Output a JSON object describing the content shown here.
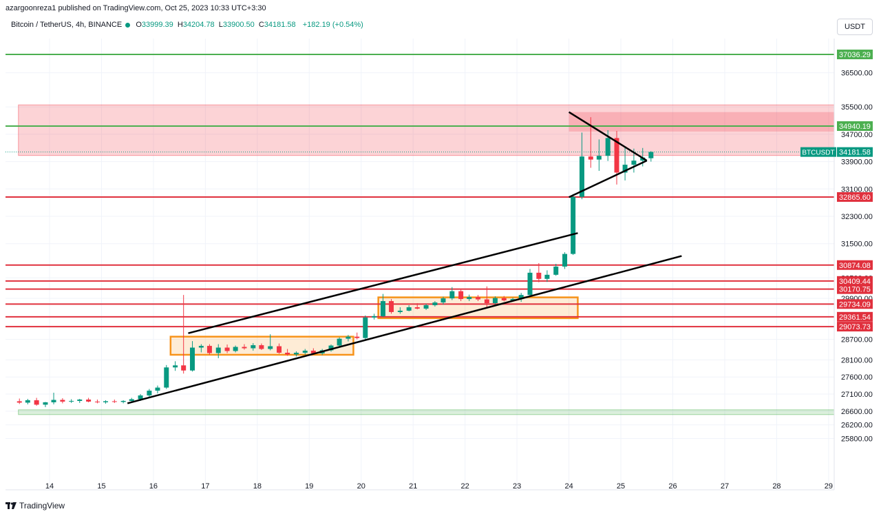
{
  "publisher": "azargoonreza1 published on TradingView.com, Oct 25, 2023 10:33 UTC+3:30",
  "legend": {
    "symbol": "Bitcoin / TetherUS, 4h, BINANCE",
    "open_label": "O",
    "open": "33999.39",
    "high_label": "H",
    "high": "34204.78",
    "low_label": "L",
    "low": "33900.50",
    "close_label": "C",
    "close": "34181.58",
    "change": "+182.19 (+0.54%)"
  },
  "currency": "USDT",
  "footer": {
    "brand": "TradingView"
  },
  "colors": {
    "up": "#089981",
    "down": "#f23645",
    "support": "#4caf50",
    "level": "#e0303d",
    "box": "#f7931a",
    "zone": "#f7a8a8"
  },
  "chart_data": {
    "type": "candlestick",
    "title": "Bitcoin / TetherUS, 4h, BINANCE",
    "ylim": [
      25600,
      37550
    ],
    "price_ticks": [
      "36500.00",
      "35500.00",
      "34700.00",
      "33900.00",
      "33100.00",
      "32300.00",
      "31500.00",
      "30500.00",
      "29900.00",
      "28700.00",
      "28100.00",
      "27600.00",
      "27100.00",
      "26600.00",
      "26200.00",
      "25800.00"
    ],
    "x_ticks": [
      "14",
      "15",
      "16",
      "17",
      "18",
      "19",
      "20",
      "21",
      "22",
      "23",
      "24",
      "25",
      "26",
      "27",
      "28",
      "29"
    ],
    "levels": [
      {
        "price": 37036.29,
        "label": "37036.29",
        "color": "#4caf50"
      },
      {
        "price": 34940.19,
        "label": "34940.19",
        "color": "#4caf50"
      },
      {
        "price": 32865.6,
        "label": "32865.60",
        "color": "#e0303d"
      },
      {
        "price": 30874.08,
        "label": "30874.08",
        "color": "#e0303d"
      },
      {
        "price": 30409.44,
        "label": "30409.44",
        "color": "#e0303d"
      },
      {
        "price": 30170.75,
        "label": "30170.75",
        "color": "#e0303d"
      },
      {
        "price": 29734.09,
        "label": "29734.09",
        "color": "#e0303d"
      },
      {
        "price": 29361.54,
        "label": "29361.54",
        "color": "#e0303d"
      },
      {
        "price": 29073.73,
        "label": "29073.73",
        "color": "#e0303d"
      }
    ],
    "last_price": {
      "label": "BTCUSDT",
      "value": "34181.58",
      "price": 34181.58
    },
    "zones": [
      {
        "from": 34080,
        "to": 35560,
        "x_from": 13.4,
        "x_to": 29.15,
        "kind": "resistance"
      },
      {
        "from": 26500,
        "to": 26640,
        "x_from": 13.4,
        "x_to": 29.15,
        "kind": "support"
      }
    ],
    "boxes": [
      {
        "x_from": 16.33,
        "x_to": 19.85,
        "top": 28780,
        "bottom": 28250
      },
      {
        "x_from": 20.33,
        "x_to": 24.17,
        "top": 29930,
        "bottom": 29320
      }
    ],
    "trendlines": [
      {
        "x1": 16.67,
        "y1": 28880,
        "x2": 24.17,
        "y2": 31810
      },
      {
        "x1": 15.5,
        "y1": 26830,
        "x2": 26.17,
        "y2": 31140
      },
      {
        "x1": 24.0,
        "y1": 35350,
        "x2": 25.5,
        "y2": 33930
      },
      {
        "x1": 24.0,
        "y1": 32860,
        "x2": 25.5,
        "y2": 33930
      }
    ],
    "candles": [
      {
        "t": 13.42,
        "o": 26890,
        "h": 26970,
        "l": 26810,
        "c": 26850
      },
      {
        "t": 13.58,
        "o": 26850,
        "h": 26960,
        "l": 26800,
        "c": 26920
      },
      {
        "t": 13.75,
        "o": 26920,
        "h": 26990,
        "l": 26760,
        "c": 26790
      },
      {
        "t": 13.92,
        "o": 26790,
        "h": 26870,
        "l": 26720,
        "c": 26860
      },
      {
        "t": 14.08,
        "o": 26860,
        "h": 27140,
        "l": 26800,
        "c": 26930
      },
      {
        "t": 14.25,
        "o": 26930,
        "h": 26980,
        "l": 26830,
        "c": 26880
      },
      {
        "t": 14.42,
        "o": 26880,
        "h": 26950,
        "l": 26840,
        "c": 26900
      },
      {
        "t": 14.58,
        "o": 26900,
        "h": 26960,
        "l": 26840,
        "c": 26940
      },
      {
        "t": 14.75,
        "o": 26940,
        "h": 26990,
        "l": 26860,
        "c": 26880
      },
      {
        "t": 14.92,
        "o": 26880,
        "h": 26940,
        "l": 26830,
        "c": 26860
      },
      {
        "t": 15.08,
        "o": 26860,
        "h": 26920,
        "l": 26820,
        "c": 26890
      },
      {
        "t": 15.25,
        "o": 26890,
        "h": 26940,
        "l": 26840,
        "c": 26870
      },
      {
        "t": 15.42,
        "o": 26870,
        "h": 26920,
        "l": 26830,
        "c": 26900
      },
      {
        "t": 15.58,
        "o": 26900,
        "h": 26990,
        "l": 26850,
        "c": 26950
      },
      {
        "t": 15.75,
        "o": 26950,
        "h": 27100,
        "l": 26900,
        "c": 27060
      },
      {
        "t": 15.92,
        "o": 27060,
        "h": 27250,
        "l": 27000,
        "c": 27200
      },
      {
        "t": 16.08,
        "o": 27200,
        "h": 27350,
        "l": 27120,
        "c": 27290
      },
      {
        "t": 16.25,
        "o": 27290,
        "h": 27950,
        "l": 27250,
        "c": 27880
      },
      {
        "t": 16.42,
        "o": 27880,
        "h": 28060,
        "l": 27780,
        "c": 27940
      },
      {
        "t": 16.58,
        "o": 27940,
        "h": 30000,
        "l": 27700,
        "c": 27790
      },
      {
        "t": 16.75,
        "o": 27790,
        "h": 28650,
        "l": 27760,
        "c": 28460
      },
      {
        "t": 16.92,
        "o": 28460,
        "h": 28560,
        "l": 28320,
        "c": 28510
      },
      {
        "t": 17.08,
        "o": 28510,
        "h": 28560,
        "l": 28250,
        "c": 28300
      },
      {
        "t": 17.25,
        "o": 28300,
        "h": 28560,
        "l": 28150,
        "c": 28460
      },
      {
        "t": 17.42,
        "o": 28460,
        "h": 28550,
        "l": 28300,
        "c": 28360
      },
      {
        "t": 17.58,
        "o": 28360,
        "h": 28520,
        "l": 28320,
        "c": 28480
      },
      {
        "t": 17.75,
        "o": 28480,
        "h": 28560,
        "l": 28400,
        "c": 28440
      },
      {
        "t": 17.92,
        "o": 28440,
        "h": 28590,
        "l": 28370,
        "c": 28530
      },
      {
        "t": 18.08,
        "o": 28530,
        "h": 28580,
        "l": 28390,
        "c": 28420
      },
      {
        "t": 18.25,
        "o": 28420,
        "h": 28850,
        "l": 28380,
        "c": 28500
      },
      {
        "t": 18.42,
        "o": 28500,
        "h": 28580,
        "l": 28280,
        "c": 28310
      },
      {
        "t": 18.58,
        "o": 28310,
        "h": 28420,
        "l": 28220,
        "c": 28260
      },
      {
        "t": 18.75,
        "o": 28260,
        "h": 28350,
        "l": 28200,
        "c": 28310
      },
      {
        "t": 18.92,
        "o": 28310,
        "h": 28420,
        "l": 28250,
        "c": 28370
      },
      {
        "t": 19.08,
        "o": 28370,
        "h": 28440,
        "l": 28260,
        "c": 28290
      },
      {
        "t": 19.25,
        "o": 28290,
        "h": 28420,
        "l": 28240,
        "c": 28380
      },
      {
        "t": 19.42,
        "o": 28380,
        "h": 28550,
        "l": 28340,
        "c": 28520
      },
      {
        "t": 19.58,
        "o": 28520,
        "h": 28760,
        "l": 28480,
        "c": 28720
      },
      {
        "t": 19.75,
        "o": 28720,
        "h": 28830,
        "l": 28640,
        "c": 28780
      },
      {
        "t": 19.92,
        "o": 28780,
        "h": 28900,
        "l": 28700,
        "c": 28740
      },
      {
        "t": 20.08,
        "o": 28740,
        "h": 29400,
        "l": 28700,
        "c": 29340
      },
      {
        "t": 20.25,
        "o": 29340,
        "h": 29450,
        "l": 29280,
        "c": 29380
      },
      {
        "t": 20.42,
        "o": 29380,
        "h": 30030,
        "l": 29350,
        "c": 29820
      },
      {
        "t": 20.58,
        "o": 29820,
        "h": 29880,
        "l": 29450,
        "c": 29500
      },
      {
        "t": 20.75,
        "o": 29500,
        "h": 29640,
        "l": 29450,
        "c": 29540
      },
      {
        "t": 20.92,
        "o": 29540,
        "h": 29700,
        "l": 29520,
        "c": 29640
      },
      {
        "t": 21.08,
        "o": 29640,
        "h": 29760,
        "l": 29580,
        "c": 29600
      },
      {
        "t": 21.25,
        "o": 29600,
        "h": 29740,
        "l": 29560,
        "c": 29700
      },
      {
        "t": 21.42,
        "o": 29700,
        "h": 29820,
        "l": 29660,
        "c": 29780
      },
      {
        "t": 21.58,
        "o": 29780,
        "h": 29950,
        "l": 29720,
        "c": 29900
      },
      {
        "t": 21.75,
        "o": 29900,
        "h": 30230,
        "l": 29850,
        "c": 30110
      },
      {
        "t": 21.92,
        "o": 30110,
        "h": 30180,
        "l": 29820,
        "c": 29880
      },
      {
        "t": 22.08,
        "o": 29880,
        "h": 30010,
        "l": 29820,
        "c": 29940
      },
      {
        "t": 22.25,
        "o": 29940,
        "h": 30000,
        "l": 29820,
        "c": 29870
      },
      {
        "t": 22.42,
        "o": 29870,
        "h": 30250,
        "l": 29620,
        "c": 29760
      },
      {
        "t": 22.58,
        "o": 29760,
        "h": 29960,
        "l": 29720,
        "c": 29910
      },
      {
        "t": 22.75,
        "o": 29910,
        "h": 29970,
        "l": 29810,
        "c": 29840
      },
      {
        "t": 22.92,
        "o": 29840,
        "h": 29920,
        "l": 29810,
        "c": 29880
      },
      {
        "t": 23.08,
        "o": 29880,
        "h": 30060,
        "l": 29800,
        "c": 30000
      },
      {
        "t": 23.25,
        "o": 30000,
        "h": 30760,
        "l": 29950,
        "c": 30650
      },
      {
        "t": 23.42,
        "o": 30650,
        "h": 30930,
        "l": 30370,
        "c": 30470
      },
      {
        "t": 23.58,
        "o": 30470,
        "h": 30720,
        "l": 30380,
        "c": 30590
      },
      {
        "t": 23.75,
        "o": 30590,
        "h": 30910,
        "l": 30560,
        "c": 30830
      },
      {
        "t": 23.92,
        "o": 30830,
        "h": 31250,
        "l": 30760,
        "c": 31200
      },
      {
        "t": 24.08,
        "o": 31200,
        "h": 32950,
        "l": 31170,
        "c": 32870
      },
      {
        "t": 24.25,
        "o": 32870,
        "h": 34750,
        "l": 32800,
        "c": 34050
      },
      {
        "t": 24.42,
        "o": 34050,
        "h": 35200,
        "l": 33720,
        "c": 33960
      },
      {
        "t": 24.58,
        "o": 33960,
        "h": 34550,
        "l": 33630,
        "c": 34070
      },
      {
        "t": 24.75,
        "o": 34070,
        "h": 34820,
        "l": 33920,
        "c": 34590
      },
      {
        "t": 24.92,
        "o": 34590,
        "h": 34800,
        "l": 33230,
        "c": 33580
      },
      {
        "t": 25.08,
        "o": 33580,
        "h": 34350,
        "l": 33350,
        "c": 33810
      },
      {
        "t": 25.25,
        "o": 33810,
        "h": 34280,
        "l": 33580,
        "c": 33930
      },
      {
        "t": 25.42,
        "o": 33930,
        "h": 34300,
        "l": 33760,
        "c": 34020
      },
      {
        "t": 25.58,
        "o": 33999.39,
        "h": 34204.78,
        "l": 33900.5,
        "c": 34181.58
      }
    ]
  }
}
